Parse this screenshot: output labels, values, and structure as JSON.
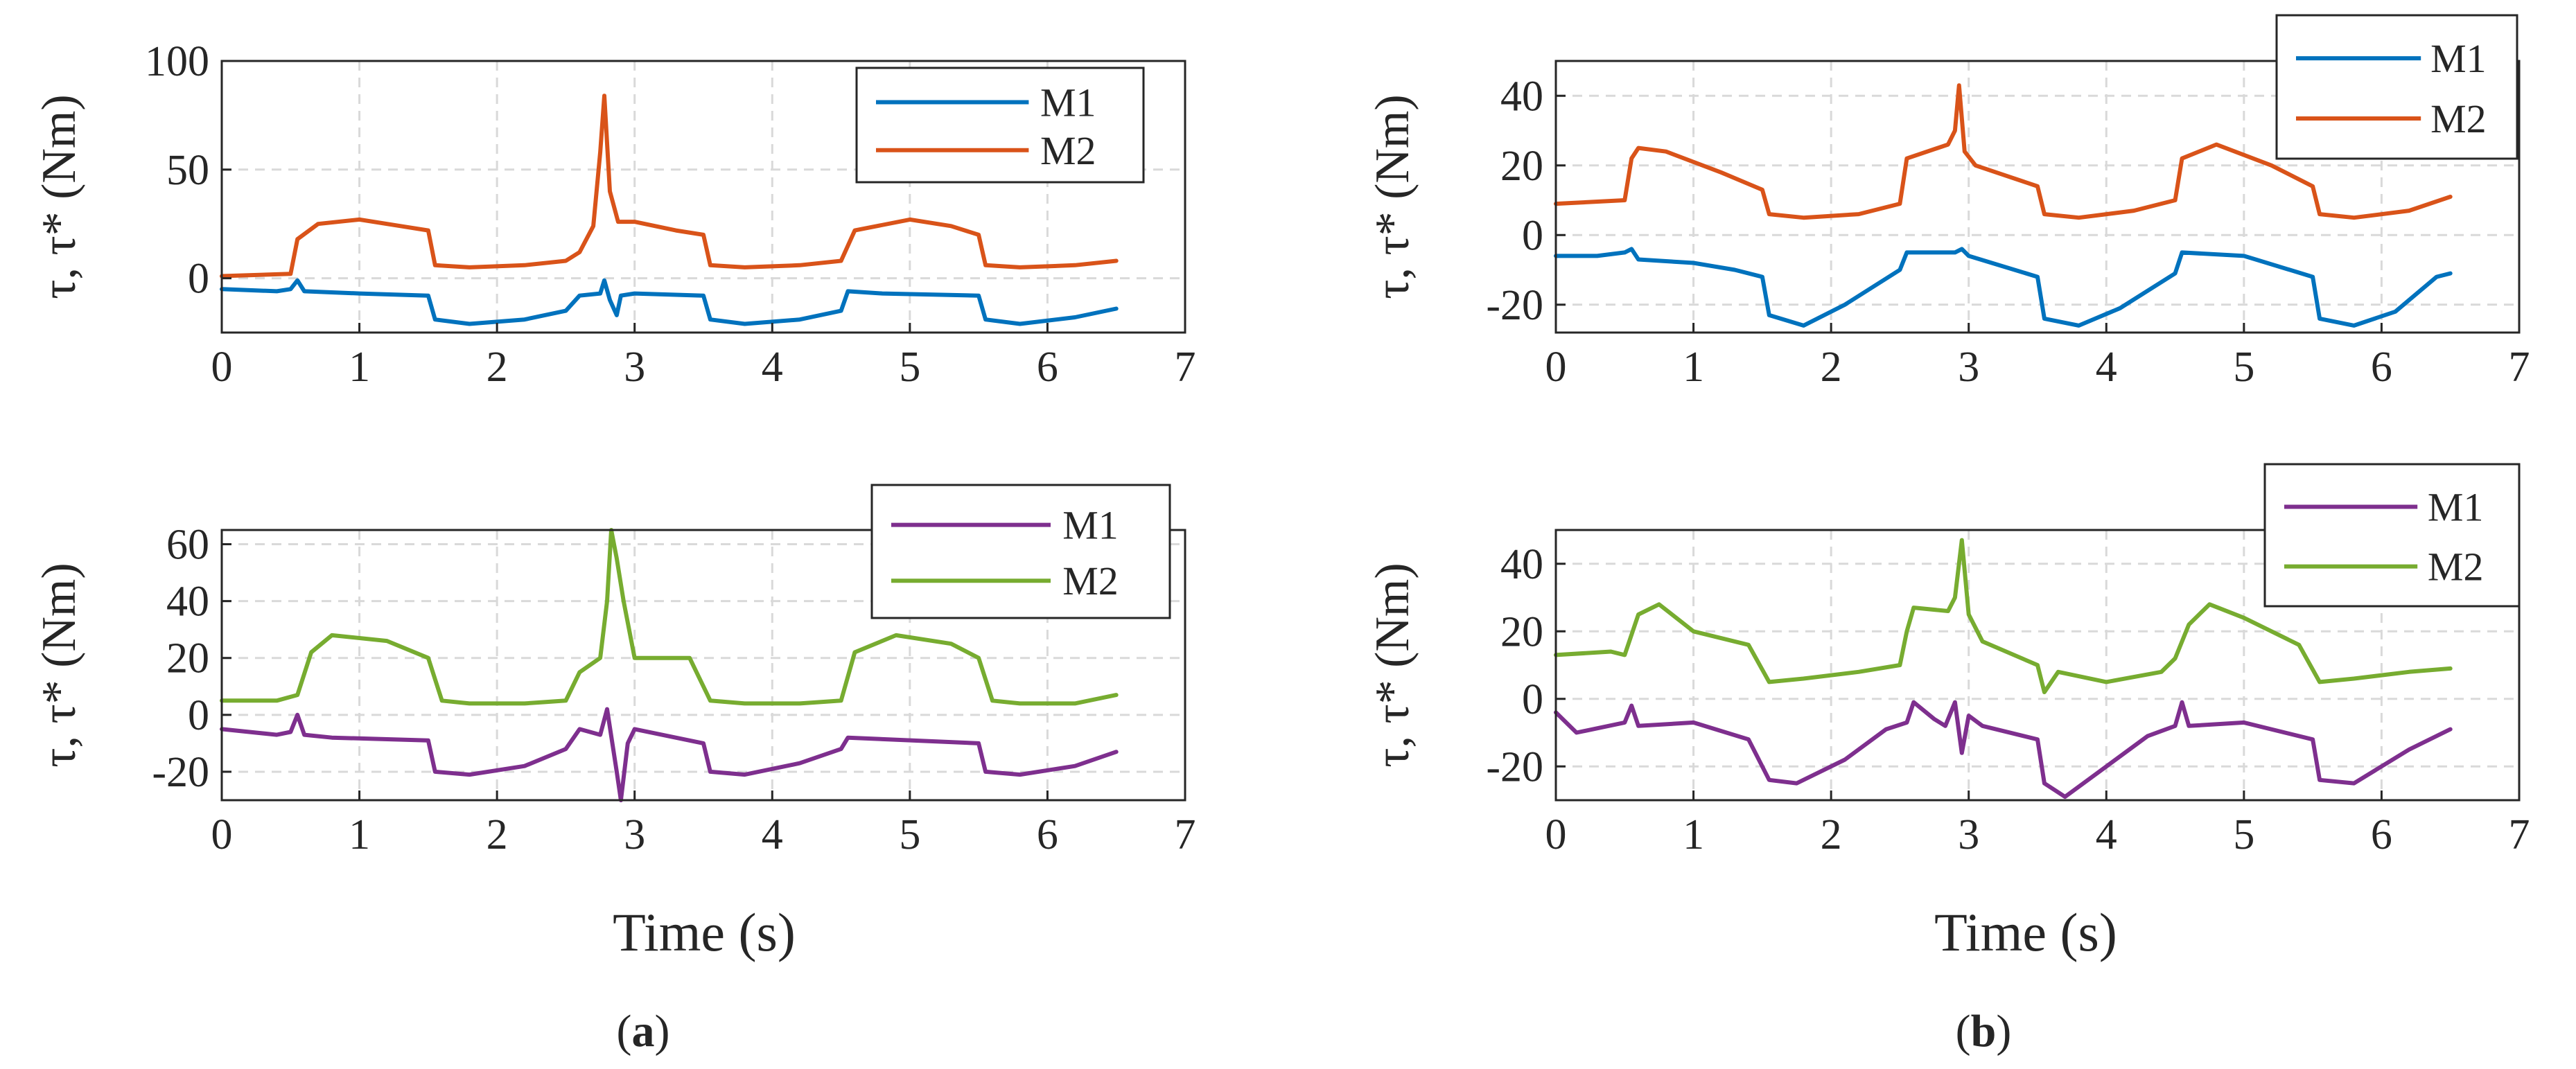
{
  "figure": {
    "caption_a": "a",
    "caption_b": "b",
    "xlabel": "Time (s)",
    "ylabel": "τ, τ* (Nm)"
  },
  "colors": {
    "m1_top": "#0072BD",
    "m2_top": "#D95319",
    "m1_bottom": "#7E2F8E",
    "m2_bottom": "#77AC30"
  },
  "chart_data": [
    {
      "id": "top-left",
      "type": "line",
      "xlim": [
        0,
        7
      ],
      "ylim": [
        -25,
        100
      ],
      "xticks": [
        0,
        1,
        2,
        3,
        4,
        5,
        6,
        7
      ],
      "yticks": [
        0,
        50,
        100
      ],
      "ylabel": "τ, τ* (Nm)",
      "xlabel": "",
      "grid": true,
      "legend": "top-right",
      "series": [
        {
          "name": "M2",
          "color": "#D95319",
          "x": [
            0,
            0.5,
            0.55,
            0.7,
            1.0,
            1.3,
            1.5,
            1.55,
            1.8,
            2.2,
            2.5,
            2.6,
            2.7,
            2.75,
            2.78,
            2.82,
            2.88,
            3.0,
            3.3,
            3.5,
            3.55,
            3.8,
            4.2,
            4.5,
            4.6,
            5.0,
            5.3,
            5.5,
            5.55,
            5.8,
            6.2,
            6.5
          ],
          "y": [
            1,
            2,
            18,
            25,
            27,
            24,
            22,
            6,
            5,
            6,
            8,
            12,
            24,
            58,
            84,
            40,
            26,
            26,
            22,
            20,
            6,
            5,
            6,
            8,
            22,
            27,
            24,
            20,
            6,
            5,
            6,
            8
          ]
        },
        {
          "name": "M1",
          "color": "#0072BD",
          "x": [
            0,
            0.4,
            0.5,
            0.55,
            0.6,
            1.0,
            1.5,
            1.55,
            1.8,
            2.2,
            2.5,
            2.6,
            2.75,
            2.78,
            2.82,
            2.87,
            2.9,
            3.0,
            3.5,
            3.55,
            3.8,
            4.2,
            4.5,
            4.55,
            4.8,
            5.5,
            5.55,
            5.8,
            6.2,
            6.5
          ],
          "y": [
            -5,
            -6,
            -5,
            -1,
            -6,
            -7,
            -8,
            -19,
            -21,
            -19,
            -15,
            -8,
            -7,
            -1,
            -10,
            -17,
            -8,
            -7,
            -8,
            -19,
            -21,
            -19,
            -15,
            -6,
            -7,
            -8,
            -19,
            -21,
            -18,
            -14
          ]
        }
      ]
    },
    {
      "id": "top-right",
      "type": "line",
      "xlim": [
        0,
        7
      ],
      "ylim": [
        -28,
        50
      ],
      "xticks": [
        0,
        1,
        2,
        3,
        4,
        5,
        6,
        7
      ],
      "yticks": [
        -20,
        0,
        20,
        40
      ],
      "ylabel": "τ, τ* (Nm)",
      "xlabel": "",
      "grid": true,
      "legend": "top-right",
      "series": [
        {
          "name": "M1",
          "color": "#0072BD",
          "x": [
            0,
            0.3,
            0.5,
            0.55,
            0.6,
            1.0,
            1.3,
            1.5,
            1.55,
            1.8,
            2.1,
            2.5,
            2.55,
            2.9,
            2.95,
            3.0,
            3.5,
            3.55,
            3.8,
            4.1,
            4.5,
            4.55,
            5.0,
            5.5,
            5.55,
            5.8,
            6.1,
            6.4,
            6.5
          ],
          "y": [
            -6,
            -6,
            -5,
            -4,
            -7,
            -8,
            -10,
            -12,
            -23,
            -26,
            -20,
            -10,
            -5,
            -5,
            -4,
            -6,
            -12,
            -24,
            -26,
            -21,
            -11,
            -5,
            -6,
            -12,
            -24,
            -26,
            -22,
            -12,
            -11
          ]
        },
        {
          "name": "M2",
          "color": "#D95319",
          "x": [
            0,
            0.5,
            0.55,
            0.6,
            0.8,
            1.2,
            1.5,
            1.55,
            1.8,
            2.2,
            2.5,
            2.55,
            2.85,
            2.9,
            2.93,
            2.97,
            3.05,
            3.5,
            3.55,
            3.8,
            4.2,
            4.5,
            4.55,
            4.8,
            5.2,
            5.5,
            5.55,
            5.8,
            6.2,
            6.5
          ],
          "y": [
            9,
            10,
            22,
            25,
            24,
            18,
            13,
            6,
            5,
            6,
            9,
            22,
            26,
            30,
            43,
            24,
            20,
            14,
            6,
            5,
            7,
            10,
            22,
            26,
            20,
            14,
            6,
            5,
            7,
            11
          ]
        }
      ]
    },
    {
      "id": "bottom-left",
      "type": "line",
      "xlim": [
        0,
        7
      ],
      "ylim": [
        -30,
        65
      ],
      "xticks": [
        0,
        1,
        2,
        3,
        4,
        5,
        6,
        7
      ],
      "yticks": [
        -20,
        0,
        20,
        40,
        60
      ],
      "ylabel": "τ, τ* (Nm)",
      "xlabel": "Time (s)",
      "grid": true,
      "legend": "top-right",
      "series": [
        {
          "name": "M2",
          "color": "#77AC30",
          "x": [
            0,
            0.4,
            0.55,
            0.65,
            0.8,
            1.2,
            1.5,
            1.6,
            1.8,
            2.2,
            2.5,
            2.6,
            2.75,
            2.8,
            2.83,
            2.87,
            2.92,
            3.0,
            3.4,
            3.55,
            3.8,
            4.2,
            4.5,
            4.6,
            4.9,
            5.3,
            5.5,
            5.6,
            5.8,
            6.2,
            6.5
          ],
          "y": [
            5,
            5,
            7,
            22,
            28,
            26,
            20,
            5,
            4,
            4,
            5,
            15,
            20,
            40,
            65,
            55,
            40,
            20,
            20,
            5,
            4,
            4,
            5,
            22,
            28,
            25,
            20,
            5,
            4,
            4,
            7
          ]
        },
        {
          "name": "M1",
          "color": "#7E2F8E",
          "x": [
            0,
            0.4,
            0.5,
            0.55,
            0.6,
            0.8,
            1.5,
            1.55,
            1.8,
            2.2,
            2.5,
            2.6,
            2.75,
            2.8,
            2.87,
            2.9,
            2.95,
            3.0,
            3.5,
            3.55,
            3.8,
            4.2,
            4.5,
            4.55,
            5.5,
            5.55,
            5.8,
            6.2,
            6.5
          ],
          "y": [
            -5,
            -7,
            -6,
            0,
            -7,
            -8,
            -9,
            -20,
            -21,
            -18,
            -12,
            -5,
            -7,
            2,
            -20,
            -30,
            -10,
            -5,
            -10,
            -20,
            -21,
            -17,
            -12,
            -8,
            -10,
            -20,
            -21,
            -18,
            -13
          ]
        }
      ]
    },
    {
      "id": "bottom-right",
      "type": "line",
      "xlim": [
        0,
        7
      ],
      "ylim": [
        -30,
        50
      ],
      "xticks": [
        0,
        1,
        2,
        3,
        4,
        5,
        6,
        7
      ],
      "yticks": [
        -20,
        0,
        20,
        40
      ],
      "ylabel": "τ, τ* (Nm)",
      "xlabel": "Time (s)",
      "grid": true,
      "legend": "top-right",
      "series": [
        {
          "name": "M1",
          "color": "#7E2F8E",
          "x": [
            0,
            0.15,
            0.5,
            0.55,
            0.6,
            1.0,
            1.4,
            1.55,
            1.75,
            2.1,
            2.4,
            2.55,
            2.6,
            2.75,
            2.83,
            2.9,
            2.95,
            3.0,
            3.1,
            3.5,
            3.55,
            3.7,
            4.0,
            4.3,
            4.5,
            4.55,
            4.6,
            5.0,
            5.5,
            5.55,
            5.8,
            6.2,
            6.5
          ],
          "y": [
            -4,
            -10,
            -7,
            -2,
            -8,
            -7,
            -12,
            -24,
            -25,
            -18,
            -9,
            -7,
            -1,
            -6,
            -8,
            -1,
            -16,
            -5,
            -8,
            -12,
            -25,
            -29,
            -20,
            -11,
            -8,
            -1,
            -8,
            -7,
            -12,
            -24,
            -25,
            -15,
            -9
          ]
        },
        {
          "name": "M2",
          "color": "#77AC30",
          "x": [
            0,
            0.4,
            0.5,
            0.6,
            0.75,
            1.0,
            1.4,
            1.55,
            1.8,
            2.2,
            2.5,
            2.55,
            2.6,
            2.85,
            2.9,
            2.95,
            3.0,
            3.1,
            3.5,
            3.55,
            3.65,
            4.0,
            4.4,
            4.5,
            4.6,
            4.75,
            5.0,
            5.4,
            5.55,
            5.8,
            6.2,
            6.5
          ],
          "y": [
            13,
            14,
            13,
            25,
            28,
            20,
            16,
            5,
            6,
            8,
            10,
            20,
            27,
            26,
            30,
            47,
            25,
            17,
            10,
            2,
            8,
            5,
            8,
            12,
            22,
            28,
            24,
            16,
            5,
            6,
            8,
            9
          ]
        }
      ]
    }
  ]
}
